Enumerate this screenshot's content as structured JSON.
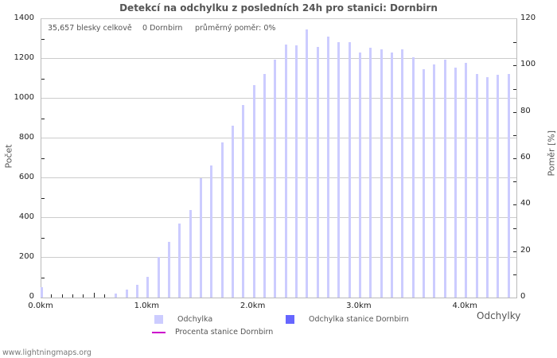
{
  "chart_data": {
    "type": "bar",
    "title": "Detekcí na odchylku z posledních 24h pro stanici: Dornbirn",
    "xlabel": "Odchylky",
    "ylabel": "Počet",
    "ylabel_right": "Poměr [%]",
    "ylim": [
      0,
      1400
    ],
    "ylim_right": [
      0,
      120
    ],
    "yticks": [
      0,
      200,
      400,
      600,
      800,
      1000,
      1200,
      1400
    ],
    "yticks_right": [
      0,
      20,
      40,
      60,
      80,
      100,
      120
    ],
    "xticks": [
      "0.0km",
      "1.0km",
      "2.0km",
      "3.0km",
      "4.0km"
    ],
    "grid": true,
    "legend_position": "bottom",
    "x": [
      0.0,
      0.1,
      0.2,
      0.3,
      0.4,
      0.5,
      0.6,
      0.7,
      0.8,
      0.9,
      1.0,
      1.1,
      1.2,
      1.3,
      1.4,
      1.5,
      1.6,
      1.7,
      1.8,
      1.9,
      2.0,
      2.1,
      2.2,
      2.3,
      2.4,
      2.5,
      2.6,
      2.7,
      2.8,
      2.9,
      3.0,
      3.1,
      3.2,
      3.3,
      3.4,
      3.5,
      3.6,
      3.7,
      3.8,
      3.9,
      4.0,
      4.1,
      4.2,
      4.3,
      4.4
    ],
    "series": [
      {
        "name": "Odchylka",
        "color": "#ccccff",
        "values": [
          52,
          0,
          0,
          0,
          0,
          0,
          0,
          20,
          40,
          64,
          103,
          203,
          282,
          374,
          442,
          600,
          664,
          780,
          863,
          970,
          1070,
          1126,
          1197,
          1273,
          1269,
          1348,
          1261,
          1313,
          1285,
          1285,
          1233,
          1257,
          1249,
          1233,
          1249,
          1209,
          1150,
          1173,
          1197,
          1157,
          1181,
          1126,
          1110,
          1122,
          1126
        ]
      },
      {
        "name": "Odchylka stanice Dornbirn",
        "color": "#6666ff",
        "values": [
          0,
          0,
          0,
          0,
          0,
          0,
          0,
          0,
          0,
          0,
          0,
          0,
          0,
          0,
          0,
          0,
          0,
          0,
          0,
          0,
          0,
          0,
          0,
          0,
          0,
          0,
          0,
          0,
          0,
          0,
          0,
          0,
          0,
          0,
          0,
          0,
          0,
          0,
          0,
          0,
          0,
          0,
          0,
          0,
          0
        ]
      },
      {
        "name": "Procenta stanice Dornbirn",
        "color": "#cc00cc",
        "type": "line",
        "axis": "right",
        "values": []
      }
    ]
  },
  "info": {
    "total": "35,657 blesky celkově",
    "station": "0 Dornbirn",
    "ratio": "průměrný poměr: 0%"
  },
  "legend": {
    "item1": "Odchylka",
    "item2": "Odchylka stanice Dornbirn",
    "item3": "Procenta stanice Dornbirn"
  },
  "footer": "www.lightningmaps.org"
}
